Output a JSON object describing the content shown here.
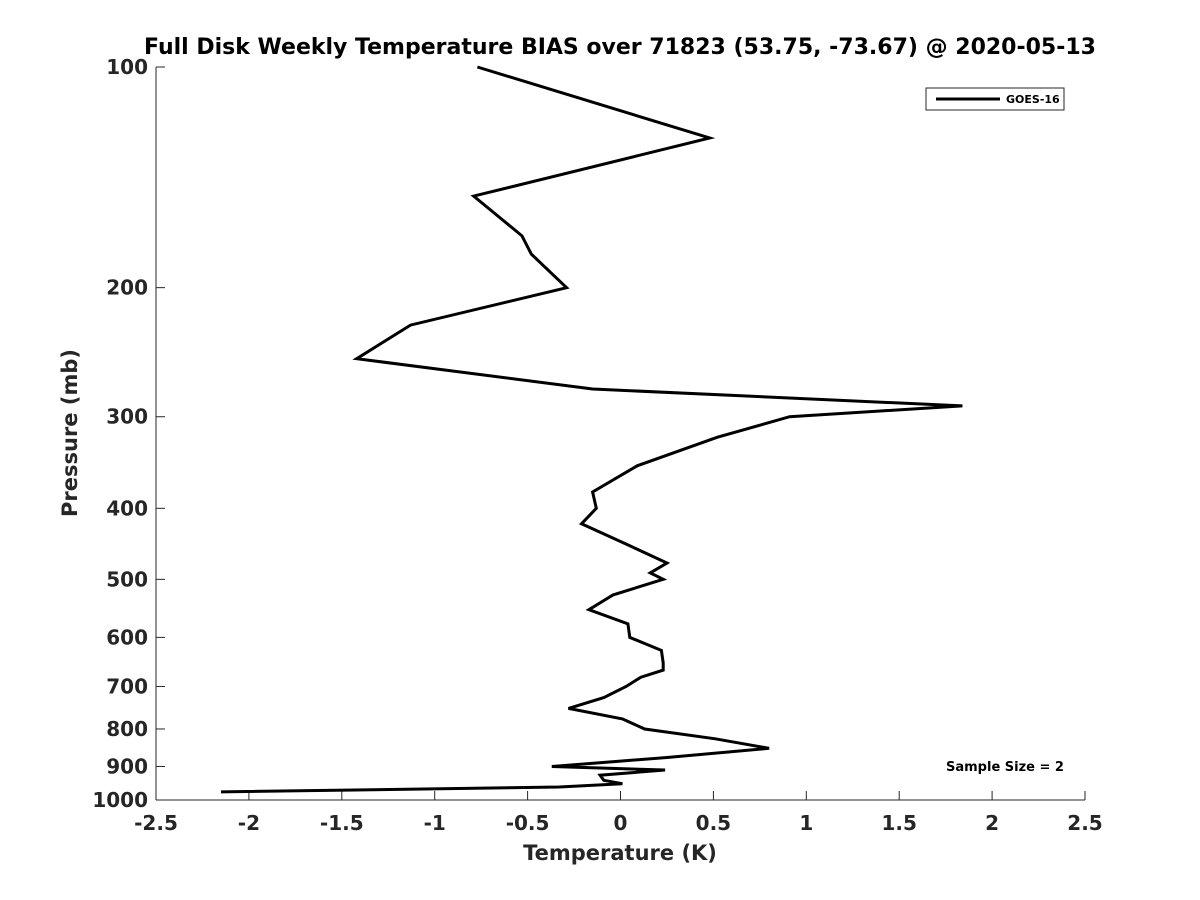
{
  "chart_data": {
    "type": "line",
    "title": "Full Disk Weekly Temperature BIAS over 71823 (53.75, -73.67) @ 2020-05-13",
    "xlabel": "Temperature (K)",
    "ylabel": "Pressure (mb)",
    "xlim": [
      -2.5,
      2.5
    ],
    "ylim": [
      100,
      1000
    ],
    "y_scale": "log",
    "y_reversed": true,
    "x_ticks": [
      "-2.5",
      "-2",
      "-1.5",
      "-1",
      "-0.5",
      "0",
      "0.5",
      "1",
      "1.5",
      "2",
      "2.5"
    ],
    "y_ticks": [
      "100",
      "200",
      "300",
      "400",
      "500",
      "600",
      "700",
      "800",
      "900",
      "1000"
    ],
    "grid": false,
    "legend_position": "top-right",
    "series": [
      {
        "name": "GOES-16",
        "color": "#000000",
        "points": [
          [
            -0.77,
            100
          ],
          [
            0.48,
            125
          ],
          [
            -0.79,
            150
          ],
          [
            -0.53,
            170
          ],
          [
            -0.48,
            180
          ],
          [
            -0.29,
            200
          ],
          [
            -1.13,
            225
          ],
          [
            -1.42,
            250
          ],
          [
            -0.15,
            275
          ],
          [
            1.84,
            290
          ],
          [
            0.91,
            300
          ],
          [
            0.52,
            320
          ],
          [
            0.09,
            350
          ],
          [
            -0.15,
            380
          ],
          [
            -0.13,
            400
          ],
          [
            -0.21,
            420
          ],
          [
            0.05,
            450
          ],
          [
            0.25,
            475
          ],
          [
            0.16,
            490
          ],
          [
            0.23,
            500
          ],
          [
            -0.04,
            525
          ],
          [
            -0.17,
            550
          ],
          [
            0.04,
            575
          ],
          [
            0.05,
            600
          ],
          [
            0.22,
            625
          ],
          [
            0.23,
            650
          ],
          [
            0.23,
            665
          ],
          [
            0.11,
            680
          ],
          [
            0.03,
            700
          ],
          [
            -0.09,
            725
          ],
          [
            -0.28,
            750
          ],
          [
            0.01,
            775
          ],
          [
            0.13,
            800
          ],
          [
            0.51,
            825
          ],
          [
            0.8,
            850
          ],
          [
            0.25,
            875
          ],
          [
            -0.37,
            900
          ],
          [
            0.24,
            910
          ],
          [
            -0.11,
            925
          ],
          [
            -0.09,
            940
          ],
          [
            0.01,
            950
          ],
          [
            -0.33,
            960
          ],
          [
            -2.15,
            975
          ]
        ]
      }
    ],
    "annotations": [
      {
        "text": "Sample Size = 2",
        "position": "bottom-right"
      }
    ]
  }
}
